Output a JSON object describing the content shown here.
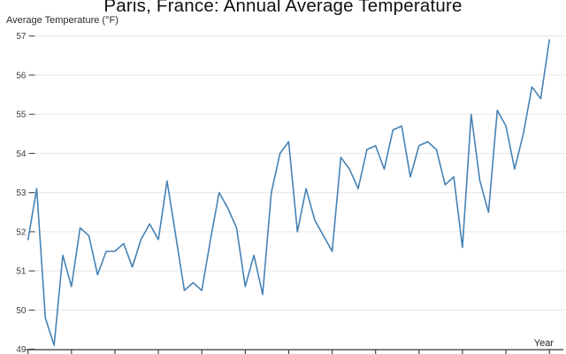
{
  "header": {
    "title": "Paris, France: Annual Average Temperature"
  },
  "chart": {
    "y_axis_title": "Average Temperature (°F)",
    "x_axis_title": "Year",
    "colors": {
      "line": "#4682b4",
      "grid": "#e7e7e7",
      "axis": "#333333",
      "tick": "#4a4a4a",
      "tick_label": "#3d3d3d",
      "title": "#111111"
    }
  },
  "chart_data": {
    "type": "line",
    "title": "Paris, France: Annual Average Temperature",
    "xlabel": "Year",
    "ylabel": "Average Temperature (°F)",
    "x_start": 1960,
    "x_step": 1,
    "x_end": 2020,
    "values": [
      51.8,
      53.1,
      49.8,
      49.1,
      51.4,
      50.6,
      52.1,
      51.9,
      50.9,
      51.5,
      51.5,
      51.7,
      51.1,
      51.8,
      52.2,
      51.8,
      53.3,
      51.9,
      50.5,
      50.7,
      50.5,
      51.8,
      53.0,
      52.6,
      52.1,
      50.6,
      51.4,
      50.4,
      53.0,
      54.0,
      54.3,
      52.0,
      53.1,
      52.3,
      51.9,
      51.5,
      53.9,
      53.6,
      53.1,
      54.1,
      54.2,
      53.6,
      54.6,
      54.7,
      53.4,
      54.2,
      54.3,
      54.1,
      53.2,
      53.4,
      51.6,
      55.0,
      53.3,
      52.5,
      55.1,
      54.7,
      53.6,
      54.5,
      55.7,
      55.4,
      56.9
    ],
    "ylim": [
      49,
      57
    ],
    "y_ticks": [
      49,
      50,
      51,
      52,
      53,
      54,
      55,
      56,
      57
    ],
    "x_ticks": [
      1960,
      1965,
      1970,
      1975,
      1980,
      1985,
      1990,
      1995,
      2000,
      2005,
      2010,
      2015,
      2020
    ],
    "x_tick_labels_visible": false,
    "grid": "horizontal",
    "legend": "none"
  }
}
